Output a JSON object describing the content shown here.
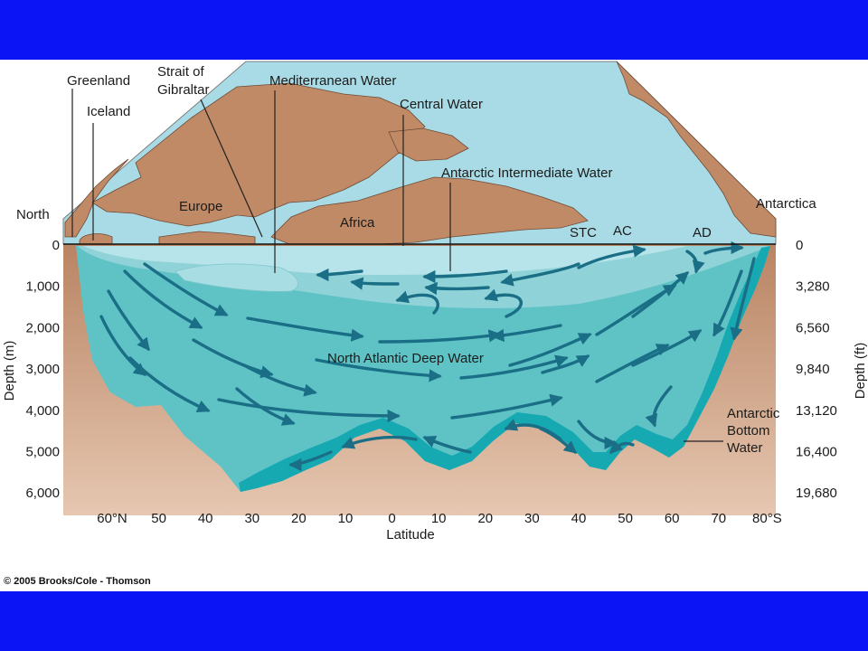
{
  "labels": {
    "greenland": "Greenland",
    "iceland": "Iceland",
    "strait_line1": "Strait of",
    "strait_line2": "Gibraltar",
    "mediterranean_water": "Mediterranean Water",
    "central_water": "Central Water",
    "antarctic_intermediate_water": "Antarctic Intermediate Water",
    "north": "North",
    "europe": "Europe",
    "africa": "Africa",
    "antarctica": "Antarctica",
    "stc": "STC",
    "ac": "AC",
    "ad": "AD",
    "north_atlantic_deep_water": "North Atlantic Deep Water",
    "abw_line1": "Antarctic",
    "abw_line2": "Bottom",
    "abw_line3": "Water"
  },
  "axes": {
    "left_title": "Depth (m)",
    "right_title": "Depth (ft)",
    "x_title": "Latitude",
    "depth_m": [
      "0",
      "1,000",
      "2,000",
      "3,000",
      "4,000",
      "5,000",
      "6,000"
    ],
    "depth_ft": [
      "0",
      "3,280",
      "6,560",
      "9,840",
      "13,120",
      "16,400",
      "19,680"
    ],
    "latitude": [
      "60°N",
      "50",
      "40",
      "30",
      "20",
      "10",
      "0",
      "10",
      "20",
      "30",
      "40",
      "50",
      "60",
      "70",
      "80°S"
    ]
  },
  "copyright": "© 2005 Brooks/Cole - Thomson",
  "colors": {
    "band": "#0a14f5",
    "land": "#c08a66",
    "shallow_water": "#a9dbe6",
    "deep_water": "#5fc3c6",
    "bottom_water": "#16a9b2",
    "arrow": "#1a6f86",
    "earth": "#c78f6c"
  }
}
